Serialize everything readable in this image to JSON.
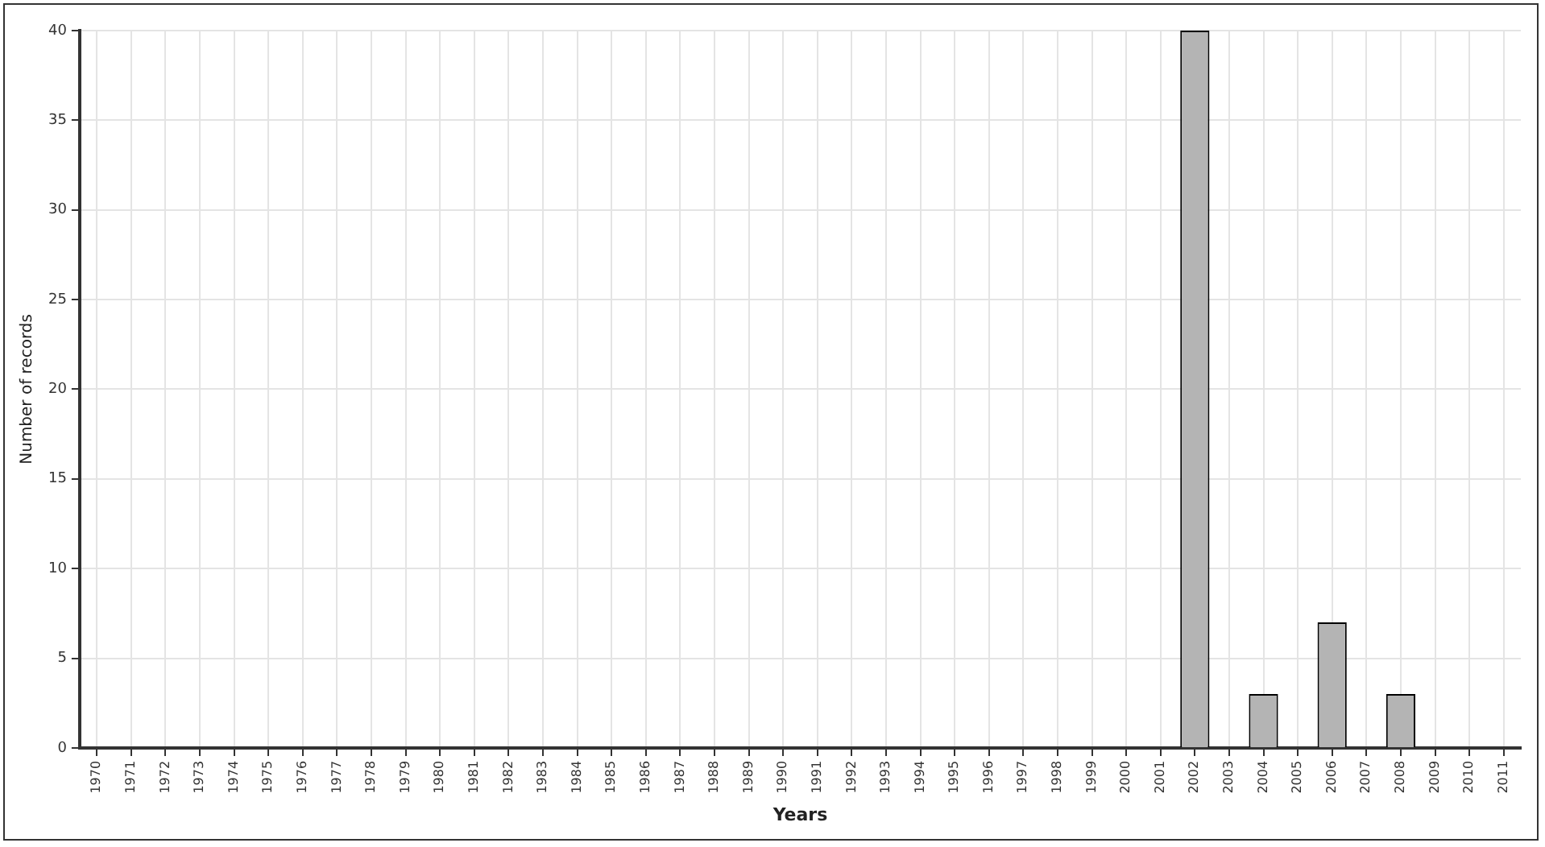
{
  "chart_data": {
    "type": "bar",
    "xlabel": "Years",
    "ylabel": "Number of records",
    "categories": [
      "1970",
      "1971",
      "1972",
      "1973",
      "1974",
      "1975",
      "1976",
      "1977",
      "1978",
      "1979",
      "1980",
      "1981",
      "1982",
      "1983",
      "1984",
      "1985",
      "1986",
      "1987",
      "1988",
      "1989",
      "1990",
      "1991",
      "1992",
      "1993",
      "1994",
      "1995",
      "1996",
      "1997",
      "1998",
      "1999",
      "2000",
      "2001",
      "2002",
      "2003",
      "2004",
      "2005",
      "2006",
      "2007",
      "2008",
      "2009",
      "2010",
      "2011"
    ],
    "values": [
      0,
      0,
      0,
      0,
      0,
      0,
      0,
      0,
      0,
      0,
      0,
      0,
      0,
      0,
      0,
      0,
      0,
      0,
      0,
      0,
      0,
      0,
      0,
      0,
      0,
      0,
      0,
      0,
      0,
      0,
      0,
      0,
      40,
      0,
      3,
      0,
      7,
      0,
      3,
      0,
      0,
      0
    ],
    "color": "#b4b4b4",
    "ylim": [
      0,
      40
    ],
    "yticks": [
      0,
      5,
      10,
      15,
      20,
      25,
      30,
      35,
      40
    ],
    "grid": true,
    "legend": false
  }
}
